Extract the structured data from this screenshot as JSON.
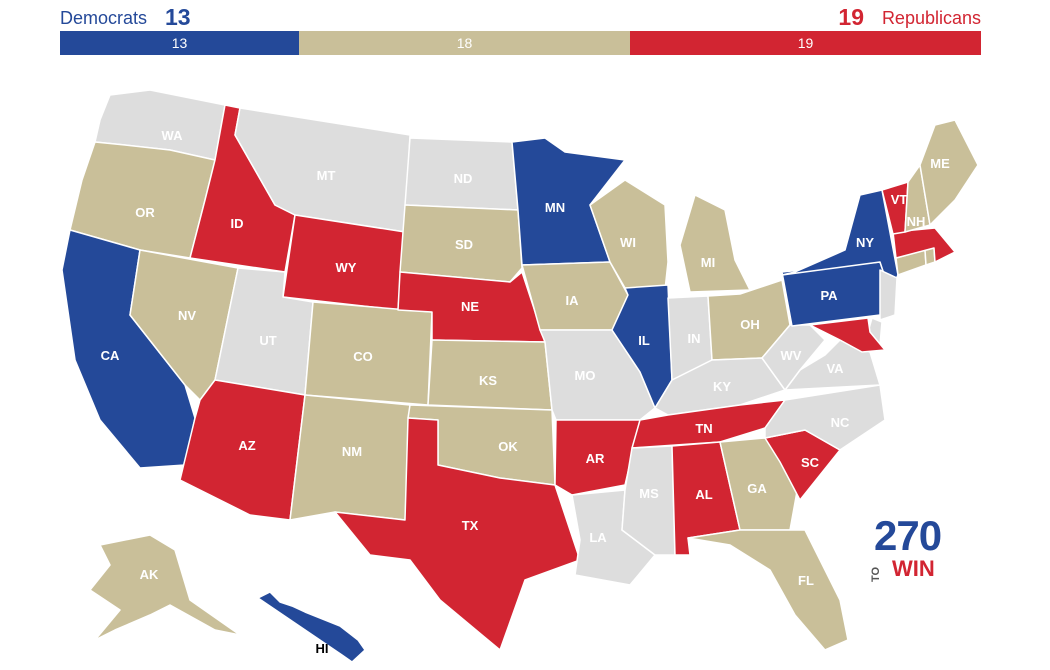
{
  "header": {
    "dem_label": "Democrats",
    "dem_count": "13",
    "rep_count": "19",
    "rep_label": "Republicans"
  },
  "bar": {
    "dem": "13",
    "tossup": "18",
    "rep": "19"
  },
  "colors": {
    "dem": "#244999",
    "rep": "#d22532",
    "tossup": "#c9bf99",
    "none": "#dddddd"
  },
  "states": {
    "WA": {
      "label": "WA",
      "status": "none"
    },
    "OR": {
      "label": "OR",
      "status": "tossup"
    },
    "CA": {
      "label": "CA",
      "status": "dem"
    },
    "ID": {
      "label": "ID",
      "status": "rep"
    },
    "NV": {
      "label": "NV",
      "status": "tossup"
    },
    "MT": {
      "label": "MT",
      "status": "none"
    },
    "WY": {
      "label": "WY",
      "status": "rep"
    },
    "UT": {
      "label": "UT",
      "status": "none"
    },
    "AZ": {
      "label": "AZ",
      "status": "rep"
    },
    "CO": {
      "label": "CO",
      "status": "tossup"
    },
    "NM": {
      "label": "NM",
      "status": "tossup"
    },
    "ND": {
      "label": "ND",
      "status": "none"
    },
    "SD": {
      "label": "SD",
      "status": "tossup"
    },
    "NE": {
      "label": "NE",
      "status": "rep"
    },
    "KS": {
      "label": "KS",
      "status": "tossup"
    },
    "OK": {
      "label": "OK",
      "status": "tossup"
    },
    "TX": {
      "label": "TX",
      "status": "rep"
    },
    "MN": {
      "label": "MN",
      "status": "dem"
    },
    "IA": {
      "label": "IA",
      "status": "tossup"
    },
    "MO": {
      "label": "MO",
      "status": "none"
    },
    "AR": {
      "label": "AR",
      "status": "rep"
    },
    "LA": {
      "label": "LA",
      "status": "none"
    },
    "WI": {
      "label": "WI",
      "status": "tossup"
    },
    "IL": {
      "label": "IL",
      "status": "dem"
    },
    "MI": {
      "label": "MI",
      "status": "tossup"
    },
    "IN": {
      "label": "IN",
      "status": "none"
    },
    "OH": {
      "label": "OH",
      "status": "tossup"
    },
    "KY": {
      "label": "KY",
      "status": "none"
    },
    "TN": {
      "label": "TN",
      "status": "rep"
    },
    "MS": {
      "label": "MS",
      "status": "none"
    },
    "AL": {
      "label": "AL",
      "status": "rep"
    },
    "GA": {
      "label": "GA",
      "status": "tossup"
    },
    "FL": {
      "label": "FL",
      "status": "tossup"
    },
    "SC": {
      "label": "SC",
      "status": "rep"
    },
    "NC": {
      "label": "NC",
      "status": "none"
    },
    "VA": {
      "label": "VA",
      "status": "none"
    },
    "WV": {
      "label": "WV",
      "status": "none"
    },
    "PA": {
      "label": "PA",
      "status": "dem"
    },
    "NY": {
      "label": "NY",
      "status": "dem"
    },
    "VT": {
      "label": "VT",
      "status": "rep"
    },
    "NH": {
      "label": "NH",
      "status": "tossup"
    },
    "ME": {
      "label": "ME",
      "status": "tossup"
    },
    "MA": {
      "label": "",
      "status": "rep"
    },
    "RI": {
      "label": "",
      "status": "tossup"
    },
    "CT": {
      "label": "",
      "status": "tossup"
    },
    "NJ": {
      "label": "",
      "status": "none"
    },
    "DE": {
      "label": "",
      "status": "none"
    },
    "MD": {
      "label": "",
      "status": "rep"
    },
    "AK": {
      "label": "AK",
      "status": "tossup"
    },
    "HI": {
      "label": "HI",
      "status": "dem"
    }
  },
  "logo": {
    "number": "270",
    "to": "TO",
    "win": "WIN"
  }
}
